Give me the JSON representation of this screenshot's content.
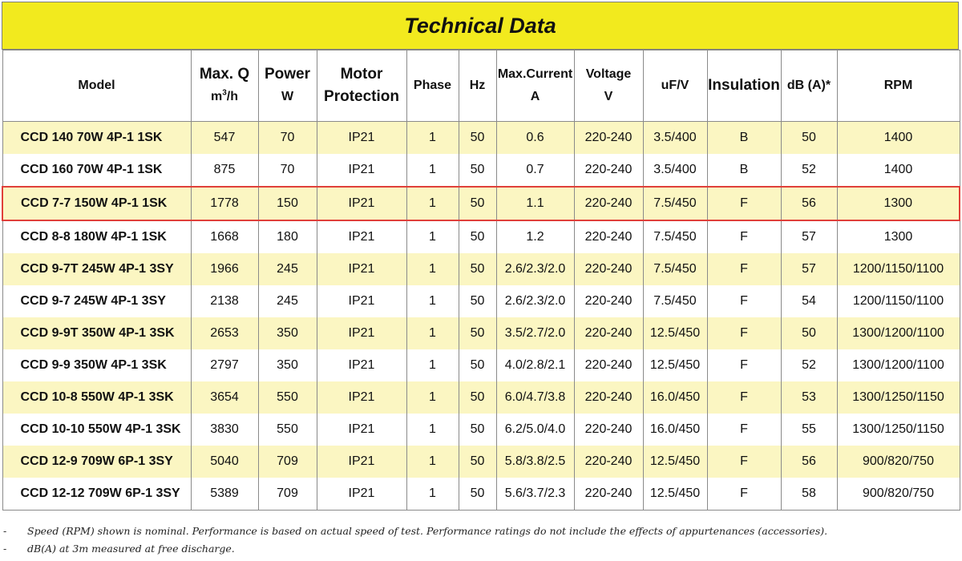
{
  "title": "Technical Data",
  "headers": {
    "model": "Model",
    "maxq_line1": "Max. Q",
    "maxq_unit_base": "m",
    "maxq_unit_sup": "3",
    "maxq_unit_tail": "/h",
    "power_line1": "Power",
    "power_line2": "W",
    "motor_line1": "Motor",
    "motor_line2": "Protection",
    "phase": "Phase",
    "hz": "Hz",
    "current_line1": "Max.Current",
    "current_line2": "A",
    "voltage_line1": "Voltage",
    "voltage_line2": "V",
    "ufv": "uF/V",
    "insulation": "Insulation",
    "db": "dB (A)*",
    "rpm": "RPM"
  },
  "rows": [
    {
      "model": "CCD 140 70W 4P-1 1SK",
      "maxq": "547",
      "power": "70",
      "protection": "IP21",
      "phase": "1",
      "hz": "50",
      "current": "0.6",
      "voltage": "220-240",
      "ufv": "3.5/400",
      "insulation": "B",
      "db": "50",
      "rpm": "1400"
    },
    {
      "model": "CCD 160 70W 4P-1 1SK",
      "maxq": "875",
      "power": "70",
      "protection": "IP21",
      "phase": "1",
      "hz": "50",
      "current": "0.7",
      "voltage": "220-240",
      "ufv": "3.5/400",
      "insulation": "B",
      "db": "52",
      "rpm": "1400"
    },
    {
      "model": "CCD 7-7 150W 4P-1 1SK",
      "maxq": "1778",
      "power": "150",
      "protection": "IP21",
      "phase": "1",
      "hz": "50",
      "current": "1.1",
      "voltage": "220-240",
      "ufv": "7.5/450",
      "insulation": "F",
      "db": "56",
      "rpm": "1300"
    },
    {
      "model": "CCD 8-8 180W 4P-1 1SK",
      "maxq": "1668",
      "power": "180",
      "protection": "IP21",
      "phase": "1",
      "hz": "50",
      "current": "1.2",
      "voltage": "220-240",
      "ufv": "7.5/450",
      "insulation": "F",
      "db": "57",
      "rpm": "1300"
    },
    {
      "model": "CCD 9-7T 245W 4P-1 3SY",
      "maxq": "1966",
      "power": "245",
      "protection": "IP21",
      "phase": "1",
      "hz": "50",
      "current": "2.6/2.3/2.0",
      "voltage": "220-240",
      "ufv": "7.5/450",
      "insulation": "F",
      "db": "57",
      "rpm": "1200/1150/1100"
    },
    {
      "model": "CCD 9-7 245W 4P-1 3SY",
      "maxq": "2138",
      "power": "245",
      "protection": "IP21",
      "phase": "1",
      "hz": "50",
      "current": "2.6/2.3/2.0",
      "voltage": "220-240",
      "ufv": "7.5/450",
      "insulation": "F",
      "db": "54",
      "rpm": "1200/1150/1100"
    },
    {
      "model": "CCD 9-9T 350W 4P-1 3SK",
      "maxq": "2653",
      "power": "350",
      "protection": "IP21",
      "phase": "1",
      "hz": "50",
      "current": "3.5/2.7/2.0",
      "voltage": "220-240",
      "ufv": "12.5/450",
      "insulation": "F",
      "db": "50",
      "rpm": "1300/1200/1100"
    },
    {
      "model": "CCD 9-9 350W 4P-1 3SK",
      "maxq": "2797",
      "power": "350",
      "protection": "IP21",
      "phase": "1",
      "hz": "50",
      "current": "4.0/2.8/2.1",
      "voltage": "220-240",
      "ufv": "12.5/450",
      "insulation": "F",
      "db": "52",
      "rpm": "1300/1200/1100"
    },
    {
      "model": "CCD 10-8 550W 4P-1 3SK",
      "maxq": "3654",
      "power": "550",
      "protection": "IP21",
      "phase": "1",
      "hz": "50",
      "current": "6.0/4.7/3.8",
      "voltage": "220-240",
      "ufv": "16.0/450",
      "insulation": "F",
      "db": "53",
      "rpm": "1300/1250/1150"
    },
    {
      "model": "CCD 10-10 550W 4P-1 3SK",
      "maxq": "3830",
      "power": "550",
      "protection": "IP21",
      "phase": "1",
      "hz": "50",
      "current": "6.2/5.0/4.0",
      "voltage": "220-240",
      "ufv": "16.0/450",
      "insulation": "F",
      "db": "55",
      "rpm": "1300/1250/1150"
    },
    {
      "model": "CCD 12-9 709W 6P-1 3SY",
      "maxq": "5040",
      "power": "709",
      "protection": "IP21",
      "phase": "1",
      "hz": "50",
      "current": "5.8/3.8/2.5",
      "voltage": "220-240",
      "ufv": "12.5/450",
      "insulation": "F",
      "db": "56",
      "rpm": "900/820/750"
    },
    {
      "model": "CCD 12-12 709W 6P-1 3SY",
      "maxq": "5389",
      "power": "709",
      "protection": "IP21",
      "phase": "1",
      "hz": "50",
      "current": "5.6/3.7/2.3",
      "voltage": "220-240",
      "ufv": "12.5/450",
      "insulation": "F",
      "db": "58",
      "rpm": "900/820/750"
    }
  ],
  "highlighted_row": 2,
  "notes": [
    {
      "dash": "-",
      "text": "Speed (RPM) shown is nominal. Performance is based on actual speed of test. Performance ratings do not include the effects of appurtenances (accessories)."
    },
    {
      "dash": "-",
      "text": "dB(A) at 3m measured at free discharge."
    }
  ],
  "colors": {
    "banner": "#f2ea1e",
    "alt_row": "#fbf6c2",
    "highlight_border": "#e0403a",
    "grid": "#8a8a8a"
  }
}
